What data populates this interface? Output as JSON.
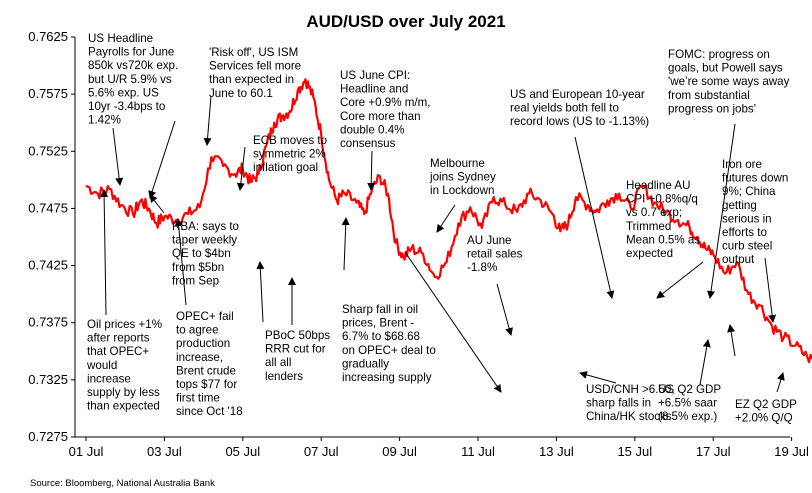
{
  "chart_data": {
    "type": "line",
    "title": "AUD/USD over July 2021",
    "source": "Source: Bloomberg, National Australia Bank",
    "ylim": [
      0.7275,
      0.7625
    ],
    "yticks": [
      0.7275,
      0.7325,
      0.7375,
      0.7425,
      0.7475,
      0.7525,
      0.7575,
      0.7625
    ],
    "ytick_labels": [
      "0.7275",
      "0.7325",
      "0.7375",
      "0.7425",
      "0.7475",
      "0.7525",
      "0.7575",
      "0.7625"
    ],
    "xlim": [
      1,
      31
    ],
    "xticks": [
      1,
      3,
      5,
      7,
      9,
      11,
      13,
      15,
      17,
      19,
      21,
      23,
      25,
      27,
      29
    ],
    "xtick_labels": [
      "01 Jul",
      "03 Jul",
      "05 Jul",
      "07 Jul",
      "09 Jul",
      "11 Jul",
      "13 Jul",
      "15 Jul",
      "17 Jul",
      "19 Jul",
      "21 Jul",
      "23 Jul",
      "25 Jul",
      "27 Jul",
      "29 Jul"
    ],
    "grid": false,
    "line_color": "#ff0000",
    "series": [
      {
        "x": [
          1.0,
          1.3,
          1.6,
          1.9,
          2.2,
          2.4,
          2.6,
          2.8,
          3.0,
          3.3,
          3.6,
          3.9,
          4.2,
          4.5,
          4.8,
          5.0,
          5.2,
          5.4,
          5.6,
          5.8,
          6.0,
          6.2,
          6.4,
          6.6,
          6.8,
          7.0,
          7.2,
          7.4,
          7.6,
          7.9,
          8.1,
          8.3,
          8.5,
          8.7,
          8.9,
          9.1,
          9.3,
          9.6,
          9.9,
          10.2,
          10.5,
          10.8,
          11.1,
          11.4,
          11.7,
          12.0,
          12.3,
          12.6,
          12.9,
          13.1,
          13.3,
          13.5,
          13.8,
          14.0,
          14.3,
          14.6,
          14.9,
          15.2,
          15.5,
          15.8,
          16.1,
          16.4,
          16.6,
          16.8,
          17.0,
          17.3,
          17.6,
          17.9,
          18.2,
          18.5,
          18.8,
          19.1,
          19.4,
          19.7,
          20.0,
          20.3,
          20.6,
          20.9,
          21.2,
          21.5,
          21.8,
          22.1,
          22.4,
          22.7,
          23.0,
          23.3,
          23.6,
          23.9,
          24.2,
          24.5,
          24.8,
          25.1,
          25.4,
          25.7,
          26.0,
          26.3,
          26.6,
          26.9,
          27.2,
          27.5,
          27.8,
          28.1,
          28.4,
          28.7,
          29.0,
          29.3,
          29.6,
          29.9,
          30.2,
          30.5,
          30.8
        ],
        "y": [
          0.7495,
          0.7488,
          0.7492,
          0.7478,
          0.747,
          0.7482,
          0.7475,
          0.7462,
          0.7468,
          0.7465,
          0.747,
          0.7476,
          0.752,
          0.7512,
          0.7505,
          0.751,
          0.7498,
          0.7505,
          0.753,
          0.755,
          0.7556,
          0.756,
          0.7578,
          0.7588,
          0.7572,
          0.754,
          0.75,
          0.7482,
          0.7488,
          0.748,
          0.747,
          0.7492,
          0.7503,
          0.7488,
          0.7445,
          0.7432,
          0.744,
          0.7435,
          0.7415,
          0.7428,
          0.7462,
          0.7476,
          0.7458,
          0.7485,
          0.7478,
          0.7472,
          0.7488,
          0.7482,
          0.747,
          0.7455,
          0.7462,
          0.7485,
          0.7478,
          0.7472,
          0.7482,
          0.7488,
          0.7475,
          0.7495,
          0.748,
          0.7472,
          0.7465,
          0.7458,
          0.745,
          0.744,
          0.7435,
          0.7418,
          0.7428,
          0.74,
          0.739,
          0.7372,
          0.7362,
          0.7355,
          0.7345,
          0.734,
          0.731,
          0.73,
          0.7318,
          0.733,
          0.7338,
          0.7342,
          0.734,
          0.735,
          0.736,
          0.7368,
          0.7378,
          0.7375,
          0.7365,
          0.7362,
          0.7358,
          0.7352,
          0.7365,
          0.737,
          0.7366,
          0.7378,
          0.7368,
          0.7358,
          0.7348,
          0.7335,
          0.7328,
          0.7352,
          0.7372,
          0.7368,
          0.7378,
          0.7388,
          0.7395,
          0.74,
          0.739,
          0.7385,
          0.7368,
          0.7342,
          0.7348
        ]
      }
    ],
    "annotations": [
      {
        "lines": [
          "US Headline",
          "Payrolls for June",
          "850k vs720k exp.",
          "but U/R 5.9% vs",
          "5.6% exp. US",
          "10yr -3.4bps to",
          "1.42%"
        ]
      },
      {
        "lines": [
          "'Risk off', US ISM",
          "Services fell more",
          "than expected in",
          "June to 60.1"
        ]
      },
      {
        "lines": [
          "US June CPI:",
          "Headline and",
          "Core +0.9% m/m,",
          "Core more than",
          "double 0.4%",
          "consensus"
        ]
      },
      {
        "lines": [
          "ECB moves to",
          "symmetric 2%",
          "inflation goal"
        ]
      },
      {
        "lines": [
          "Melbourne",
          "joins Sydney",
          "in Lockdown"
        ]
      },
      {
        "lines": [
          "US and European 10-year",
          "real yields both fell to",
          "record lows (US to -1.13%)"
        ]
      },
      {
        "lines": [
          "FOMC:  progress on",
          "goals, but Powell says",
          "'we’re some ways away",
          "from substantial",
          "progress on jobs'"
        ]
      },
      {
        "lines": [
          "Headline AU",
          "CPI +0.8%q/q",
          "vs 0.7 exp;",
          "Trimmed",
          "Mean 0.5% as",
          "expected"
        ]
      },
      {
        "lines": [
          "Iron ore",
          "futures down",
          "9%; China",
          "getting",
          "serious in",
          "efforts to",
          "curb steel",
          "output"
        ]
      },
      {
        "lines": [
          "RBA: says to",
          "taper weekly",
          "QE to $4bn",
          "from $5bn",
          "from Sep"
        ]
      },
      {
        "lines": [
          "AU June",
          "retail sales",
          "-1.8%"
        ]
      },
      {
        "lines": [
          "Oil prices +1%",
          "after reports",
          "that OPEC+",
          "would",
          "increase",
          "supply by less",
          "than expected"
        ]
      },
      {
        "lines": [
          "OPEC+ fail",
          "to agree",
          "production",
          "increase,",
          "Brent crude",
          "tops $77 for",
          "first time",
          "since Oct '18"
        ]
      },
      {
        "lines": [
          "PBoC 50bps",
          "RRR cut for",
          "all all",
          "lenders"
        ]
      },
      {
        "lines": [
          "Sharp fall in oil",
          "prices, Brent -",
          "6.7% to $68.68",
          "on OPEC+ deal to",
          "gradually",
          "increasing supply"
        ]
      },
      {
        "lines": [
          "USD/CNH >6.50,",
          "sharp falls in",
          "China/HK stocks"
        ]
      },
      {
        "lines": [
          "US Q2 GDP",
          "+6.5% saar",
          "(8.5% exp.)"
        ]
      },
      {
        "lines": [
          "EZ Q2 GDP",
          "+2.0% Q/Q"
        ]
      }
    ]
  }
}
